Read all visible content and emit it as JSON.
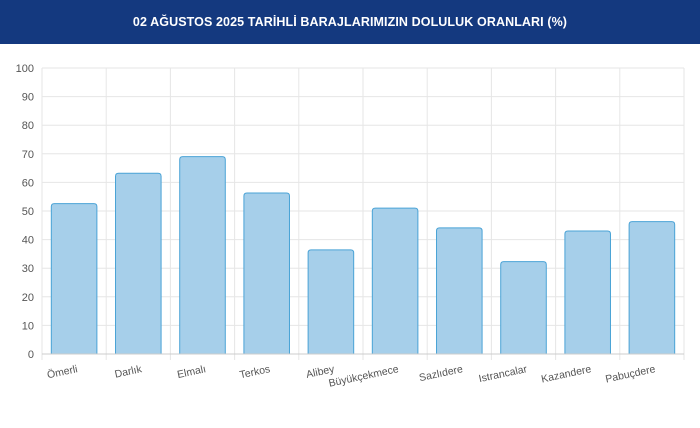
{
  "header": {
    "title": "02 AĞUSTOS 2025 TARİHLİ BARAJLARIMIZIN DOLULUK ORANLARI (%)"
  },
  "colors": {
    "header_bg": "#14397f",
    "bar_fill": "#a6cfea",
    "bar_stroke": "#4aa3d6",
    "grid": "#e6e6e6"
  },
  "chart_data": {
    "type": "bar",
    "title": "02 AĞUSTOS 2025 TARİHLİ BARAJLARIMIZIN DOLULUK ORANLARI (%)",
    "categories": [
      "Ömerli",
      "Darlık",
      "Elmalı",
      "Terkos",
      "Alibey",
      "Büyükçekmece",
      "Sazlıdere",
      "Istrancalar",
      "Kazandere",
      "Pabuçdere"
    ],
    "values": [
      52.6,
      63.2,
      69.0,
      56.3,
      36.4,
      51.0,
      44.1,
      32.3,
      43.0,
      46.3
    ],
    "ylim": [
      0,
      100
    ],
    "yticks": [
      0,
      10,
      20,
      30,
      40,
      50,
      60,
      70,
      80,
      90,
      100
    ],
    "grid": true,
    "legend": "none"
  }
}
